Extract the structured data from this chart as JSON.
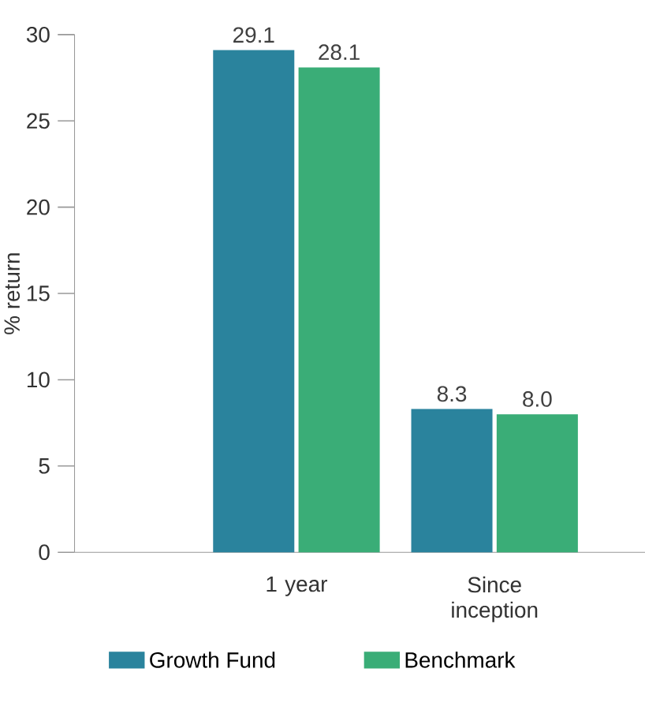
{
  "chart_data": {
    "type": "bar",
    "ylabel": "% return",
    "categories": [
      "1 year",
      "Since inception"
    ],
    "series": [
      {
        "name": "Growth Fund",
        "color": "#2a839d",
        "values": [
          29.1,
          8.3
        ],
        "value_labels": [
          "29.1",
          "8.3"
        ]
      },
      {
        "name": "Benchmark",
        "color": "#3aad77",
        "values": [
          28.1,
          8.0
        ],
        "value_labels": [
          "28.1",
          "8.0"
        ]
      }
    ],
    "ylim": [
      0,
      30
    ],
    "yticks": [
      0,
      5,
      10,
      15,
      20,
      25,
      30
    ],
    "legend": "bottom",
    "grid": false
  }
}
